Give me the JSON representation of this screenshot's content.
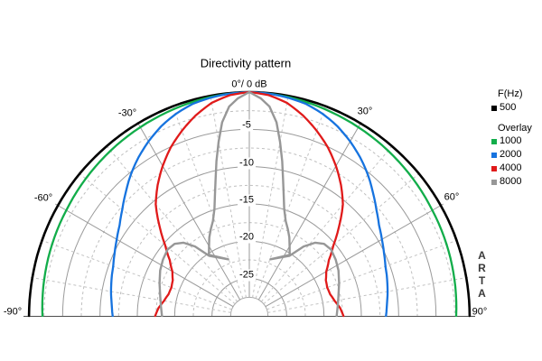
{
  "title": "Directivity pattern",
  "apex_label": "0°/ 0 dB",
  "angle_labels": {
    "m30": "-30°",
    "p30": "30°",
    "m60": "-60°",
    "p60": "60°",
    "m90": "-90°",
    "p90": "90°"
  },
  "db_labels": [
    "-5",
    "-10",
    "-15",
    "-20",
    "-25"
  ],
  "legend": {
    "freq_header": "F(Hz)",
    "base_label": "500",
    "overlay_header": "Overlay",
    "overlay_labels": [
      "1000",
      "2000",
      "4000",
      "8000"
    ]
  },
  "watermark": {
    "l0": "A",
    "l1": "R",
    "l2": "T",
    "l3": "A"
  },
  "chart_data": {
    "type": "polar-directivity",
    "title": "Directivity pattern",
    "units": "dB",
    "angle_range_deg": [
      -90,
      90
    ],
    "db_range": [
      0,
      -30
    ],
    "grid": {
      "ring_solid_step_db": 5,
      "ring_dashed_step_db": 2.5,
      "spoke_solid_step_deg": 30,
      "spoke_dashed_step_deg": 10,
      "inner_cutoff_db": -27.5
    },
    "series": [
      {
        "name": "500 Hz",
        "freq_hz": 500,
        "color": "#000000",
        "width": 2.6,
        "symmetric": true,
        "fold": false,
        "points_deg_db": [
          [
            0,
            0
          ],
          [
            10,
            -0.05
          ],
          [
            20,
            -0.1
          ],
          [
            30,
            -0.2
          ],
          [
            40,
            -0.3
          ],
          [
            50,
            -0.35
          ],
          [
            60,
            -0.4
          ],
          [
            70,
            -0.45
          ],
          [
            80,
            -0.5
          ],
          [
            90,
            -0.5
          ]
        ]
      },
      {
        "name": "1000 Hz",
        "freq_hz": 1000,
        "color": "#12AD4A",
        "width": 2.3,
        "symmetric": true,
        "fold": false,
        "points_deg_db": [
          [
            0,
            0
          ],
          [
            10,
            -0.2
          ],
          [
            20,
            -0.5
          ],
          [
            30,
            -0.8
          ],
          [
            40,
            -1.1
          ],
          [
            50,
            -1.4
          ],
          [
            60,
            -1.7
          ],
          [
            70,
            -1.9
          ],
          [
            80,
            -2.1
          ],
          [
            90,
            -2.3
          ]
        ]
      },
      {
        "name": "2000 Hz",
        "freq_hz": 2000,
        "color": "#1673DF",
        "width": 2.3,
        "symmetric": true,
        "fold": false,
        "points_deg_db": [
          [
            0,
            0
          ],
          [
            5,
            -0.1
          ],
          [
            10,
            -0.3
          ],
          [
            15,
            -0.6
          ],
          [
            20,
            -1.2
          ],
          [
            25,
            -2.0
          ],
          [
            30,
            -3.0
          ],
          [
            35,
            -4.1
          ],
          [
            40,
            -5.3
          ],
          [
            45,
            -6.6
          ],
          [
            50,
            -7.8
          ],
          [
            55,
            -8.8
          ],
          [
            60,
            -9.5
          ],
          [
            65,
            -10.1
          ],
          [
            70,
            -10.6
          ],
          [
            75,
            -10.9
          ],
          [
            80,
            -11.2
          ],
          [
            85,
            -11.5
          ],
          [
            90,
            -11.7
          ]
        ]
      },
      {
        "name": "4000 Hz",
        "freq_hz": 4000,
        "color": "#E01A1A",
        "width": 2.3,
        "symmetric": true,
        "fold": false,
        "points_deg_db": [
          [
            0,
            0
          ],
          [
            5,
            -0.3
          ],
          [
            10,
            -1.0
          ],
          [
            15,
            -2.2
          ],
          [
            20,
            -3.6
          ],
          [
            25,
            -5.1
          ],
          [
            30,
            -6.8
          ],
          [
            35,
            -8.6
          ],
          [
            40,
            -10.5
          ],
          [
            45,
            -13.0
          ],
          [
            50,
            -15.3
          ],
          [
            55,
            -17.0
          ],
          [
            60,
            -18.1
          ],
          [
            65,
            -18.7
          ],
          [
            70,
            -18.9
          ],
          [
            75,
            -18.8
          ],
          [
            80,
            -18.4
          ],
          [
            85,
            -17.8
          ],
          [
            90,
            -17.4
          ]
        ]
      },
      {
        "name": "8000 Hz",
        "freq_hz": 8000,
        "color": "#979797",
        "width": 2.4,
        "symmetric": true,
        "fold": true,
        "points_deg_db": [
          [
            0,
            0
          ],
          [
            3,
            -0.8
          ],
          [
            5.5,
            -1.8
          ],
          [
            8,
            -3.8
          ],
          [
            10,
            -6.3
          ],
          [
            12,
            -8.8
          ],
          [
            14,
            -11.3
          ],
          [
            16,
            -13.3
          ],
          [
            18,
            -14.9
          ],
          [
            21,
            -16.4
          ],
          [
            24,
            -17.3
          ],
          [
            27,
            -18.2
          ],
          [
            30,
            -19.2
          ],
          [
            33.5,
            -20.2
          ],
          [
            20.5,
            -21.9
          ],
          [
            33.8,
            -20.3
          ],
          [
            38,
            -18.2
          ],
          [
            42,
            -16.8
          ],
          [
            46,
            -16.1
          ],
          [
            51,
            -15.9
          ],
          [
            57,
            -16.2
          ],
          [
            63,
            -16.6
          ],
          [
            70,
            -17.2
          ],
          [
            78,
            -17.8
          ],
          [
            84,
            -18.1
          ],
          [
            90,
            -18.3
          ]
        ]
      }
    ]
  }
}
